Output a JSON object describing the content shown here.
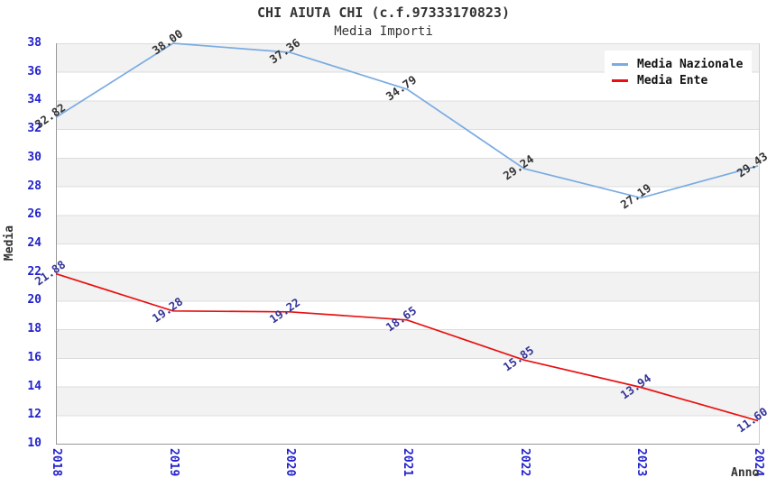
{
  "title": "CHI AIUTA CHI (c.f.97333170823)",
  "subtitle": "Media Importi",
  "chart_data": {
    "type": "line",
    "x": [
      "2018",
      "2019",
      "2020",
      "2021",
      "2022",
      "2023",
      "2024"
    ],
    "series": [
      {
        "name": "Media Nazionale",
        "color": "#7aabe2",
        "label_color": "#333333",
        "values": [
          32.82,
          38.0,
          37.36,
          34.79,
          29.24,
          27.19,
          29.43
        ]
      },
      {
        "name": "Media Ente",
        "color": "#e81010",
        "label_color": "#333399",
        "values": [
          21.88,
          19.28,
          19.22,
          18.65,
          15.85,
          13.94,
          11.6
        ]
      }
    ],
    "xlabel": "Anno",
    "ylabel": "Media",
    "ylim": [
      10,
      38
    ],
    "ytick_step": 2,
    "legend_position": "top-right",
    "grid": "horizontal-bands",
    "band_colors": [
      "#f2f2f2",
      "#ffffff"
    ],
    "tick_label_color": "#2222cc"
  }
}
